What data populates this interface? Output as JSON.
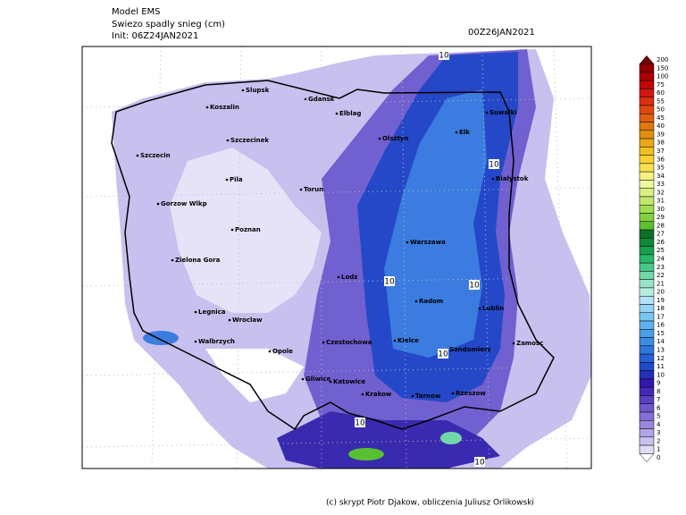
{
  "header": {
    "model": "Model EMS",
    "field": "Swiezo spadly snieg (cm)",
    "init": "Init: 06Z24JAN2021",
    "valid": "00Z26JAN2021"
  },
  "cities": [
    "Slupsk",
    "Koszalin",
    "Gdansk",
    "Elblag",
    "Olsztyn",
    "Elk",
    "Suwalki",
    "Szczecinek",
    "Szczecin",
    "Pila",
    "Torun",
    "Bialystok",
    "Gorzow Wlkp",
    "Poznan",
    "Warszawa",
    "Zielona Gora",
    "Lodz",
    "Radom",
    "Lublin",
    "Legnica",
    "Wroclaw",
    "Walbrzych",
    "Opole",
    "Czestochowa",
    "Kielce",
    "Sandomierz",
    "Zamosc",
    "Gliwice",
    "Katowice",
    "Krakow",
    "Tarnow",
    "Rzeszow"
  ],
  "contour_labels": [
    "10",
    "10",
    "10",
    "10",
    "10",
    "10",
    "10"
  ],
  "colorbar": {
    "labels": [
      200,
      150,
      100,
      75,
      60,
      55,
      50,
      45,
      40,
      39,
      38,
      37,
      36,
      35,
      34,
      33,
      32,
      31,
      30,
      29,
      28,
      27,
      26,
      25,
      24,
      23,
      22,
      21,
      20,
      19,
      18,
      17,
      16,
      15,
      14,
      13,
      12,
      11,
      10,
      9,
      8,
      7,
      6,
      5,
      4,
      3,
      2,
      1,
      0
    ],
    "colors": [
      "#780000",
      "#900000",
      "#a80000",
      "#c00808",
      "#d01810",
      "#d83010",
      "#e04810",
      "#e06010",
      "#e07810",
      "#e09010",
      "#e8a818",
      "#f0c020",
      "#f8d030",
      "#f8e050",
      "#f8f080",
      "#f0f8a0",
      "#d8f080",
      "#c0e868",
      "#a0dc50",
      "#80d040",
      "#5cc030",
      "#0c7028",
      "#108838",
      "#18a050",
      "#28b868",
      "#48c888",
      "#70d8a8",
      "#98e4c8",
      "#b8eee0",
      "#b4e2f8",
      "#94d4f6",
      "#78c4f2",
      "#60b2ee",
      "#4aa0e8",
      "#3a8ce2",
      "#2c78dc",
      "#2462d4",
      "#1e4cc8",
      "#2030b8",
      "#3218a8",
      "#4628b8",
      "#5a40c2",
      "#6e58cc",
      "#8470d6",
      "#9a88de",
      "#b0a4e6",
      "#c8c0ee",
      "#e0dcf5",
      "#ffffff"
    ]
  },
  "credit": "(c) skrypt Piotr Djakow, obliczenia Juliusz Orlikowski"
}
